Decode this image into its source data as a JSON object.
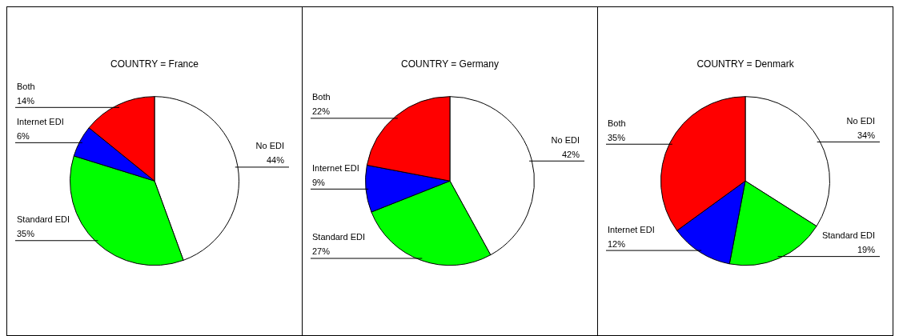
{
  "chart_data": [
    {
      "type": "pie",
      "title": "COUNTRY = France",
      "categories": [
        "No EDI",
        "Standard EDI",
        "Internet EDI",
        "Both"
      ],
      "values": [
        44,
        35,
        6,
        14
      ],
      "value_labels": [
        "44%",
        "35%",
        "6%",
        "14%"
      ],
      "colors": [
        "#ffffff",
        "#00ff00",
        "#0000ff",
        "#ff0000"
      ],
      "legend": false
    },
    {
      "type": "pie",
      "title": "COUNTRY = Germany",
      "categories": [
        "No EDI",
        "Standard EDI",
        "Internet EDI",
        "Both"
      ],
      "values": [
        42,
        27,
        9,
        22
      ],
      "value_labels": [
        "42%",
        "27%",
        "9%",
        "22%"
      ],
      "colors": [
        "#ffffff",
        "#00ff00",
        "#0000ff",
        "#ff0000"
      ],
      "legend": false
    },
    {
      "type": "pie",
      "title": "COUNTRY = Denmark",
      "categories": [
        "No EDI",
        "Standard EDI",
        "Internet EDI",
        "Both"
      ],
      "values": [
        34,
        19,
        12,
        35
      ],
      "value_labels": [
        "34%",
        "19%",
        "12%",
        "35%"
      ],
      "colors": [
        "#ffffff",
        "#00ff00",
        "#0000ff",
        "#ff0000"
      ],
      "legend": false
    }
  ]
}
